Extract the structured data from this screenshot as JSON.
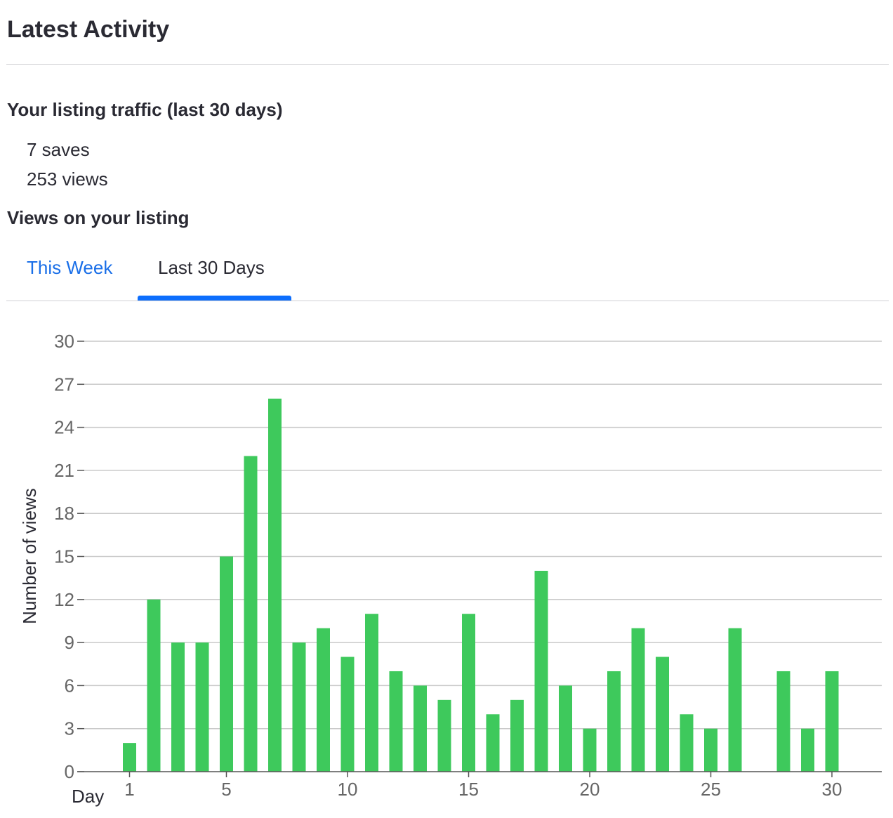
{
  "header": {
    "title": "Latest Activity"
  },
  "traffic": {
    "heading": "Your listing traffic (last 30 days)",
    "saves": "7 saves",
    "views": "253 views"
  },
  "views_section": {
    "heading": "Views on your listing",
    "tabs": [
      {
        "label": "This Week",
        "active": false
      },
      {
        "label": "Last 30 Days",
        "active": true
      }
    ]
  },
  "colors": {
    "bar": "#3ec95c",
    "tab_link": "#1a6fe8",
    "tab_underline": "#0d6efd"
  },
  "chart_data": {
    "type": "bar",
    "x": [
      1,
      2,
      3,
      4,
      5,
      6,
      7,
      8,
      9,
      10,
      11,
      12,
      13,
      14,
      15,
      16,
      17,
      18,
      19,
      20,
      21,
      22,
      23,
      24,
      25,
      26,
      27,
      28,
      29,
      30
    ],
    "values": [
      2,
      12,
      9,
      9,
      15,
      22,
      26,
      9,
      10,
      8,
      11,
      7,
      6,
      5,
      11,
      4,
      5,
      14,
      6,
      3,
      7,
      10,
      8,
      4,
      3,
      10,
      0,
      7,
      3,
      7
    ],
    "xlabel": "Day",
    "ylabel": "Number of views",
    "ylim": [
      0,
      30
    ],
    "xlim": [
      0,
      31
    ],
    "yticks": [
      0,
      3,
      6,
      9,
      12,
      15,
      18,
      21,
      24,
      27,
      30
    ],
    "xticks": [
      1,
      5,
      10,
      15,
      20,
      25,
      30
    ],
    "grid": true
  }
}
